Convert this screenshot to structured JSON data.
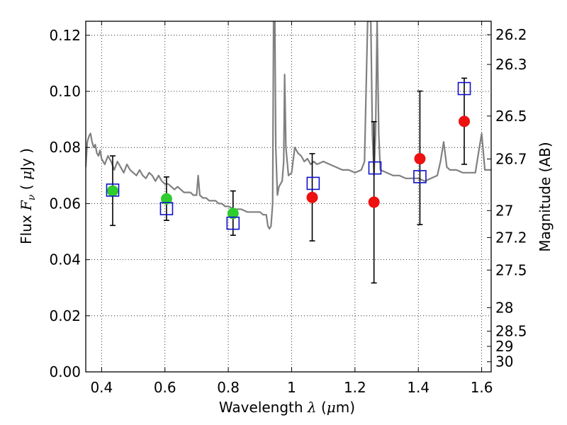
{
  "chart_data": {
    "type": "scatter",
    "xlabel": "Wavelength  λ (μm)",
    "ylabel": "Flux  F_ν  ( μJy )",
    "ylabel_right": "Magnitude (AB)",
    "xlim": [
      0.35,
      1.63
    ],
    "ylim": [
      0.0,
      0.125
    ],
    "grid": true,
    "x_ticks": [
      0.4,
      0.6,
      0.8,
      1.0,
      1.2,
      1.4,
      1.6
    ],
    "x_tick_labels": [
      "0.4",
      "0.6",
      "0.8",
      "1",
      "1.2",
      "1.4",
      "1.6"
    ],
    "y_ticks": [
      0.0,
      0.02,
      0.04,
      0.06,
      0.08,
      0.1,
      0.12
    ],
    "y_tick_labels": [
      "0.00",
      "0.02",
      "0.04",
      "0.06",
      "0.08",
      "0.10",
      "0.12"
    ],
    "right_ticks": [
      {
        "label": "26.2",
        "flux": 0.1202
      },
      {
        "label": "26.3",
        "flux": 0.1096
      },
      {
        "label": "26.5",
        "flux": 0.0912
      },
      {
        "label": "26.7",
        "flux": 0.0759
      },
      {
        "label": "27",
        "flux": 0.0575
      },
      {
        "label": "27.2",
        "flux": 0.0479
      },
      {
        "label": "27.5",
        "flux": 0.0363
      },
      {
        "label": "28",
        "flux": 0.0229
      },
      {
        "label": "28.5",
        "flux": 0.0145
      },
      {
        "label": "29",
        "flux": 0.0091
      },
      {
        "label": "30",
        "flux": 0.0036
      }
    ],
    "series": [
      {
        "kind": "model_spectrum",
        "color": "#808080",
        "points": [
          [
            0.35,
            0.073
          ],
          [
            0.355,
            0.082
          ],
          [
            0.36,
            0.084
          ],
          [
            0.365,
            0.085
          ],
          [
            0.37,
            0.082
          ],
          [
            0.375,
            0.08
          ],
          [
            0.38,
            0.081
          ],
          [
            0.385,
            0.078
          ],
          [
            0.39,
            0.077
          ],
          [
            0.395,
            0.079
          ],
          [
            0.4,
            0.076
          ],
          [
            0.41,
            0.074
          ],
          [
            0.42,
            0.077
          ],
          [
            0.43,
            0.075
          ],
          [
            0.44,
            0.072
          ],
          [
            0.45,
            0.075
          ],
          [
            0.46,
            0.073
          ],
          [
            0.47,
            0.071
          ],
          [
            0.48,
            0.074
          ],
          [
            0.49,
            0.072
          ],
          [
            0.5,
            0.071
          ],
          [
            0.51,
            0.07
          ],
          [
            0.52,
            0.072
          ],
          [
            0.53,
            0.07
          ],
          [
            0.54,
            0.069
          ],
          [
            0.55,
            0.071
          ],
          [
            0.56,
            0.07
          ],
          [
            0.57,
            0.068
          ],
          [
            0.58,
            0.07
          ],
          [
            0.59,
            0.068
          ],
          [
            0.6,
            0.067
          ],
          [
            0.61,
            0.067
          ],
          [
            0.62,
            0.066
          ],
          [
            0.63,
            0.065
          ],
          [
            0.64,
            0.066
          ],
          [
            0.65,
            0.065
          ],
          [
            0.66,
            0.064
          ],
          [
            0.67,
            0.064
          ],
          [
            0.68,
            0.064
          ],
          [
            0.69,
            0.063
          ],
          [
            0.7,
            0.063
          ],
          [
            0.705,
            0.07
          ],
          [
            0.71,
            0.063
          ],
          [
            0.72,
            0.062
          ],
          [
            0.73,
            0.062
          ],
          [
            0.74,
            0.061
          ],
          [
            0.75,
            0.061
          ],
          [
            0.76,
            0.061
          ],
          [
            0.77,
            0.06
          ],
          [
            0.78,
            0.06
          ],
          [
            0.79,
            0.059
          ],
          [
            0.8,
            0.059
          ],
          [
            0.82,
            0.058
          ],
          [
            0.84,
            0.058
          ],
          [
            0.86,
            0.057
          ],
          [
            0.88,
            0.057
          ],
          [
            0.9,
            0.057
          ],
          [
            0.91,
            0.056
          ],
          [
            0.92,
            0.056
          ],
          [
            0.925,
            0.052
          ],
          [
            0.93,
            0.051
          ],
          [
            0.935,
            0.052
          ],
          [
            0.94,
            0.06
          ],
          [
            0.943,
            0.125
          ],
          [
            0.947,
            0.125
          ],
          [
            0.95,
            0.08
          ],
          [
            0.955,
            0.063
          ],
          [
            0.96,
            0.066
          ],
          [
            0.965,
            0.067
          ],
          [
            0.97,
            0.068
          ],
          [
            0.975,
            0.075
          ],
          [
            0.978,
            0.106
          ],
          [
            0.982,
            0.08
          ],
          [
            0.99,
            0.07
          ],
          [
            1.0,
            0.071
          ],
          [
            1.01,
            0.08
          ],
          [
            1.02,
            0.078
          ],
          [
            1.03,
            0.077
          ],
          [
            1.04,
            0.075
          ],
          [
            1.05,
            0.076
          ],
          [
            1.06,
            0.074
          ],
          [
            1.07,
            0.075
          ],
          [
            1.08,
            0.074
          ],
          [
            1.1,
            0.075
          ],
          [
            1.12,
            0.074
          ],
          [
            1.14,
            0.073
          ],
          [
            1.16,
            0.072
          ],
          [
            1.18,
            0.072
          ],
          [
            1.2,
            0.071
          ],
          [
            1.22,
            0.072
          ],
          [
            1.23,
            0.075
          ],
          [
            1.24,
            0.125
          ],
          [
            1.25,
            0.125
          ],
          [
            1.255,
            0.085
          ],
          [
            1.26,
            0.07
          ],
          [
            1.265,
            0.085
          ],
          [
            1.27,
            0.125
          ],
          [
            1.275,
            0.085
          ],
          [
            1.28,
            0.072
          ],
          [
            1.3,
            0.071
          ],
          [
            1.32,
            0.07
          ],
          [
            1.34,
            0.07
          ],
          [
            1.36,
            0.069
          ],
          [
            1.38,
            0.069
          ],
          [
            1.4,
            0.069
          ],
          [
            1.42,
            0.068
          ],
          [
            1.44,
            0.069
          ],
          [
            1.46,
            0.07
          ],
          [
            1.47,
            0.075
          ],
          [
            1.48,
            0.082
          ],
          [
            1.49,
            0.073
          ],
          [
            1.5,
            0.072
          ],
          [
            1.52,
            0.072
          ],
          [
            1.54,
            0.071
          ],
          [
            1.56,
            0.071
          ],
          [
            1.58,
            0.071
          ],
          [
            1.59,
            0.078
          ],
          [
            1.6,
            0.085
          ],
          [
            1.61,
            0.072
          ],
          [
            1.63,
            0.072
          ]
        ]
      },
      {
        "kind": "observed_green",
        "color": "#2ecc2e",
        "points": [
          {
            "x": 0.435,
            "y": 0.0645
          },
          {
            "x": 0.605,
            "y": 0.0617
          },
          {
            "x": 0.815,
            "y": 0.0565
          }
        ]
      },
      {
        "kind": "observed_red",
        "color": "#ee1111",
        "points": [
          {
            "x": 1.065,
            "y": 0.0622
          },
          {
            "x": 1.26,
            "y": 0.0605
          },
          {
            "x": 1.405,
            "y": 0.076
          },
          {
            "x": 1.545,
            "y": 0.0893
          }
        ]
      },
      {
        "kind": "model_boxes",
        "color": "#1010cc",
        "points": [
          {
            "x": 0.435,
            "y": 0.0648
          },
          {
            "x": 0.605,
            "y": 0.0582
          },
          {
            "x": 0.815,
            "y": 0.053
          },
          {
            "x": 1.068,
            "y": 0.0672
          },
          {
            "x": 1.263,
            "y": 0.0727
          },
          {
            "x": 1.405,
            "y": 0.0696
          },
          {
            "x": 1.545,
            "y": 0.101
          }
        ]
      }
    ],
    "error_bars": [
      {
        "x": 0.435,
        "low": 0.0522,
        "high": 0.077
      },
      {
        "x": 0.605,
        "low": 0.054,
        "high": 0.0695
      },
      {
        "x": 0.815,
        "low": 0.0487,
        "high": 0.0645
      },
      {
        "x": 1.065,
        "low": 0.0467,
        "high": 0.0778
      },
      {
        "x": 1.26,
        "low": 0.0317,
        "high": 0.0892
      },
      {
        "x": 1.405,
        "low": 0.0525,
        "high": 0.1001
      },
      {
        "x": 1.545,
        "low": 0.074,
        "high": 0.1047
      }
    ]
  }
}
